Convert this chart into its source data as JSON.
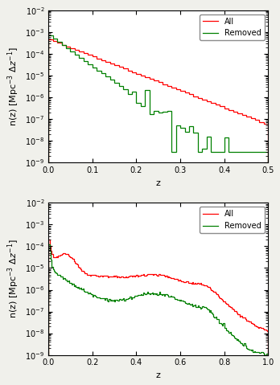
{
  "panel1": {
    "xlabel": "z",
    "xlim": [
      0.0,
      0.5
    ],
    "ylim": [
      1e-09,
      0.01
    ],
    "legend": [
      "All",
      "Removed"
    ],
    "bin_width": 0.01,
    "red_scale": 0.0005,
    "red_decay": 0.055,
    "green_scale": 0.0008,
    "green_decay": 0.03
  },
  "panel2": {
    "xlabel": "z",
    "xlim": [
      0.0,
      1.0
    ],
    "ylim": [
      1e-09,
      0.01
    ],
    "legend": [
      "All",
      "Removed"
    ],
    "bin_width": 0.005
  },
  "figure": {
    "bg_color": "#f0f0eb",
    "plot_bg": "white",
    "fontsize": 8,
    "tick_fontsize": 7,
    "legend_fontsize": 7,
    "linewidth": 0.9
  }
}
